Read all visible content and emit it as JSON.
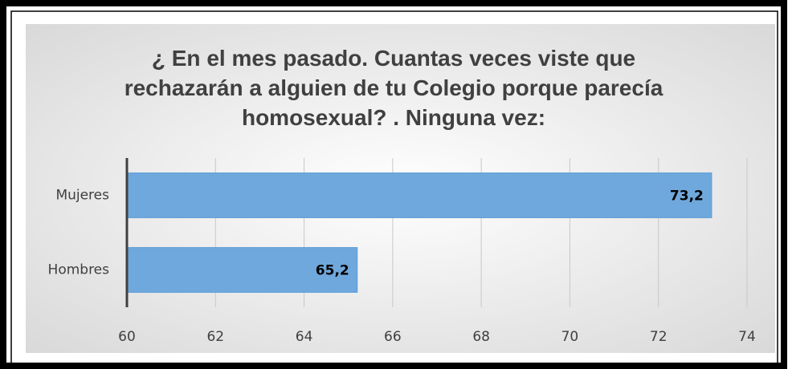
{
  "chart_data": {
    "type": "barh",
    "title": "¿ En el mes pasado.  Cuantas veces viste que rechazarán a alguien de tu Colegio porque parecía homosexual? . Ninguna vez:",
    "categories": [
      "Mujeres",
      "Hombres"
    ],
    "values": [
      73.2,
      65.2
    ],
    "value_labels": [
      "73,2",
      "65,2"
    ],
    "color": "#6fa8dc",
    "xlim": [
      60,
      74
    ],
    "xticks": [
      60,
      62,
      64,
      66,
      68,
      70,
      72,
      74
    ],
    "grid": true
  }
}
